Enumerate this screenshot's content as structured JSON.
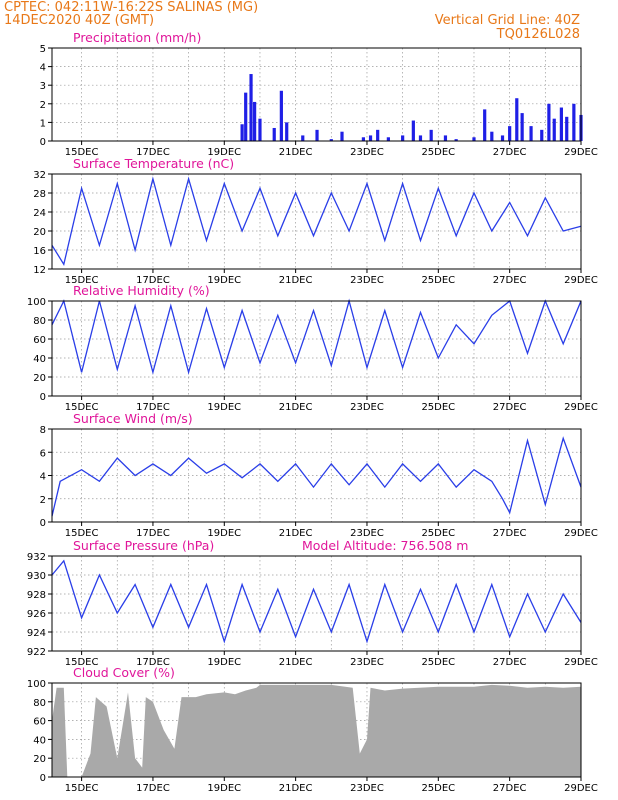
{
  "header": {
    "line1_left": "CPTEC:   042:11W-16:22S   SALINAS (MG)",
    "line2_left": "14DEC2020 40Z (GMT)",
    "line1_right": "Vertical Grid Line: 40Z",
    "line2_right": "TQ0126L028",
    "header_color": "#e87818",
    "title_color": "#e0169a",
    "series_color": "#2a3ee8",
    "precip_color": "#1f1fe6",
    "cloud_color": "#a9a9a9"
  },
  "x_tick_labels": [
    "15DEC",
    "17DEC",
    "19DEC",
    "21DEC",
    "23DEC",
    "25DEC",
    "27DEC",
    "29DEC"
  ],
  "chart_data": [
    {
      "type": "bar",
      "title": "Precipitation (mm/h)",
      "ylim": [
        0,
        5
      ],
      "yticks": [
        "0",
        "1",
        "2",
        "3",
        "4",
        "5"
      ],
      "x_unit": "days since 14DEC2020 00Z",
      "series": [
        {
          "values": [
            [
              19.5,
              0.9
            ],
            [
              19.6,
              2.6
            ],
            [
              19.75,
              3.6
            ],
            [
              19.85,
              2.1
            ],
            [
              20.0,
              1.2
            ],
            [
              20.4,
              0.7
            ],
            [
              20.6,
              2.7
            ],
            [
              20.75,
              1.0
            ],
            [
              21.2,
              0.3
            ],
            [
              21.6,
              0.6
            ],
            [
              22.0,
              0.1
            ],
            [
              22.3,
              0.5
            ],
            [
              22.9,
              0.2
            ],
            [
              23.1,
              0.3
            ],
            [
              23.3,
              0.6
            ],
            [
              23.6,
              0.2
            ],
            [
              24.0,
              0.3
            ],
            [
              24.3,
              1.1
            ],
            [
              24.5,
              0.3
            ],
            [
              24.8,
              0.6
            ],
            [
              25.2,
              0.3
            ],
            [
              25.5,
              0.1
            ],
            [
              26.0,
              0.2
            ],
            [
              26.3,
              1.7
            ],
            [
              26.5,
              0.5
            ],
            [
              26.8,
              0.3
            ],
            [
              27.0,
              0.8
            ],
            [
              27.2,
              2.3
            ],
            [
              27.35,
              1.5
            ],
            [
              27.6,
              0.8
            ],
            [
              27.9,
              0.6
            ],
            [
              28.1,
              2.0
            ],
            [
              28.25,
              1.2
            ],
            [
              28.45,
              1.8
            ],
            [
              28.6,
              1.3
            ],
            [
              28.8,
              2.0
            ],
            [
              29.0,
              1.4
            ]
          ]
        }
      ]
    },
    {
      "type": "line",
      "title": "Surface Temperature (nC)",
      "ylim": [
        12,
        32
      ],
      "yticks": [
        "12",
        "16",
        "20",
        "24",
        "28",
        "32"
      ],
      "series": [
        {
          "values": [
            [
              14.17,
              17
            ],
            [
              14.5,
              13
            ],
            [
              15.0,
              29
            ],
            [
              15.5,
              17
            ],
            [
              16.0,
              30
            ],
            [
              16.5,
              16
            ],
            [
              17.0,
              31
            ],
            [
              17.5,
              17
            ],
            [
              18.0,
              31
            ],
            [
              18.5,
              18
            ],
            [
              19.0,
              30
            ],
            [
              19.5,
              20
            ],
            [
              20.0,
              29
            ],
            [
              20.5,
              19
            ],
            [
              21.0,
              28
            ],
            [
              21.5,
              19
            ],
            [
              22.0,
              28
            ],
            [
              22.5,
              20
            ],
            [
              23.0,
              30
            ],
            [
              23.5,
              18
            ],
            [
              24.0,
              30
            ],
            [
              24.5,
              18
            ],
            [
              25.0,
              29
            ],
            [
              25.5,
              19
            ],
            [
              26.0,
              28
            ],
            [
              26.5,
              20
            ],
            [
              27.0,
              26
            ],
            [
              27.5,
              19
            ],
            [
              28.0,
              27
            ],
            [
              28.5,
              20
            ],
            [
              29.0,
              21
            ]
          ]
        }
      ]
    },
    {
      "type": "line",
      "title": "Relative Humidity (%)",
      "ylim": [
        0,
        100
      ],
      "yticks": [
        "0",
        "20",
        "40",
        "60",
        "80",
        "100"
      ],
      "series": [
        {
          "values": [
            [
              14.17,
              75
            ],
            [
              14.5,
              100
            ],
            [
              15.0,
              25
            ],
            [
              15.5,
              100
            ],
            [
              16.0,
              28
            ],
            [
              16.5,
              95
            ],
            [
              17.0,
              25
            ],
            [
              17.5,
              95
            ],
            [
              18.0,
              25
            ],
            [
              18.5,
              92
            ],
            [
              19.0,
              30
            ],
            [
              19.5,
              90
            ],
            [
              20.0,
              35
            ],
            [
              20.5,
              85
            ],
            [
              21.0,
              35
            ],
            [
              21.5,
              90
            ],
            [
              22.0,
              32
            ],
            [
              22.5,
              100
            ],
            [
              23.0,
              30
            ],
            [
              23.5,
              90
            ],
            [
              24.0,
              30
            ],
            [
              24.5,
              88
            ],
            [
              25.0,
              40
            ],
            [
              25.5,
              75
            ],
            [
              26.0,
              55
            ],
            [
              26.5,
              85
            ],
            [
              27.0,
              100
            ],
            [
              27.5,
              45
            ],
            [
              28.0,
              100
            ],
            [
              28.5,
              55
            ],
            [
              29.0,
              100
            ]
          ]
        }
      ]
    },
    {
      "type": "line",
      "title": "Surface Wind (m/s)",
      "ylim": [
        0,
        8
      ],
      "yticks": [
        "0",
        "2",
        "4",
        "6",
        "8"
      ],
      "series": [
        {
          "values": [
            [
              14.17,
              0.5
            ],
            [
              14.4,
              3.5
            ],
            [
              15.0,
              4.5
            ],
            [
              15.5,
              3.5
            ],
            [
              16.0,
              5.5
            ],
            [
              16.5,
              4.0
            ],
            [
              17.0,
              5.0
            ],
            [
              17.5,
              4.0
            ],
            [
              18.0,
              5.5
            ],
            [
              18.5,
              4.2
            ],
            [
              19.0,
              5.0
            ],
            [
              19.5,
              3.8
            ],
            [
              20.0,
              5.0
            ],
            [
              20.5,
              3.5
            ],
            [
              21.0,
              5.0
            ],
            [
              21.5,
              3.0
            ],
            [
              22.0,
              5.0
            ],
            [
              22.5,
              3.2
            ],
            [
              23.0,
              5.0
            ],
            [
              23.5,
              3.0
            ],
            [
              24.0,
              5.0
            ],
            [
              24.5,
              3.5
            ],
            [
              25.0,
              5.0
            ],
            [
              25.5,
              3.0
            ],
            [
              26.0,
              4.5
            ],
            [
              26.5,
              3.5
            ],
            [
              26.8,
              2.0
            ],
            [
              27.0,
              0.8
            ],
            [
              27.5,
              7.0
            ],
            [
              28.0,
              1.5
            ],
            [
              28.5,
              7.2
            ],
            [
              29.0,
              3.0
            ]
          ]
        }
      ]
    },
    {
      "type": "line",
      "title": "Surface Pressure (hPa)",
      "subtitle": "Model Altitude: 756.508 m",
      "ylim": [
        922,
        932
      ],
      "yticks": [
        "922",
        "924",
        "926",
        "928",
        "930",
        "932"
      ],
      "series": [
        {
          "values": [
            [
              14.17,
              930
            ],
            [
              14.5,
              931.5
            ],
            [
              15.0,
              925.5
            ],
            [
              15.5,
              930
            ],
            [
              16.0,
              926
            ],
            [
              16.5,
              929
            ],
            [
              17.0,
              924.5
            ],
            [
              17.5,
              929
            ],
            [
              18.0,
              924.5
            ],
            [
              18.5,
              929
            ],
            [
              19.0,
              923
            ],
            [
              19.5,
              929
            ],
            [
              20.0,
              924
            ],
            [
              20.5,
              928.5
            ],
            [
              21.0,
              923.5
            ],
            [
              21.5,
              928.5
            ],
            [
              22.0,
              924
            ],
            [
              22.5,
              929
            ],
            [
              23.0,
              923
            ],
            [
              23.5,
              929
            ],
            [
              24.0,
              924
            ],
            [
              24.5,
              928.5
            ],
            [
              25.0,
              924
            ],
            [
              25.5,
              929
            ],
            [
              26.0,
              924
            ],
            [
              26.5,
              929
            ],
            [
              27.0,
              923.5
            ],
            [
              27.5,
              928
            ],
            [
              28.0,
              924
            ],
            [
              28.5,
              928
            ],
            [
              29.0,
              925
            ]
          ]
        }
      ]
    },
    {
      "type": "area",
      "title": "Cloud Cover (%)",
      "ylim": [
        0,
        100
      ],
      "yticks": [
        "0",
        "20",
        "40",
        "60",
        "80",
        "100"
      ],
      "series": [
        {
          "values": [
            [
              14.17,
              60
            ],
            [
              14.3,
              95
            ],
            [
              14.5,
              95
            ],
            [
              14.6,
              0
            ],
            [
              15.0,
              0
            ],
            [
              15.25,
              25
            ],
            [
              15.4,
              85
            ],
            [
              15.7,
              75
            ],
            [
              16.0,
              20
            ],
            [
              16.3,
              90
            ],
            [
              16.5,
              20
            ],
            [
              16.7,
              10
            ],
            [
              16.8,
              85
            ],
            [
              17.0,
              80
            ],
            [
              17.3,
              50
            ],
            [
              17.6,
              30
            ],
            [
              17.8,
              85
            ],
            [
              18.2,
              85
            ],
            [
              18.5,
              88
            ],
            [
              19.0,
              90
            ],
            [
              19.3,
              88
            ],
            [
              19.6,
              92
            ],
            [
              19.9,
              95
            ],
            [
              20.0,
              98
            ],
            [
              21.0,
              98
            ],
            [
              22.0,
              98
            ],
            [
              22.6,
              95
            ],
            [
              22.8,
              25
            ],
            [
              23.0,
              40
            ],
            [
              23.1,
              95
            ],
            [
              23.5,
              92
            ],
            [
              24.0,
              94
            ],
            [
              25.0,
              96
            ],
            [
              26.0,
              96
            ],
            [
              26.5,
              98
            ],
            [
              27.0,
              97
            ],
            [
              27.5,
              95
            ],
            [
              28.0,
              96
            ],
            [
              28.5,
              95
            ],
            [
              29.0,
              96
            ]
          ]
        }
      ]
    }
  ]
}
